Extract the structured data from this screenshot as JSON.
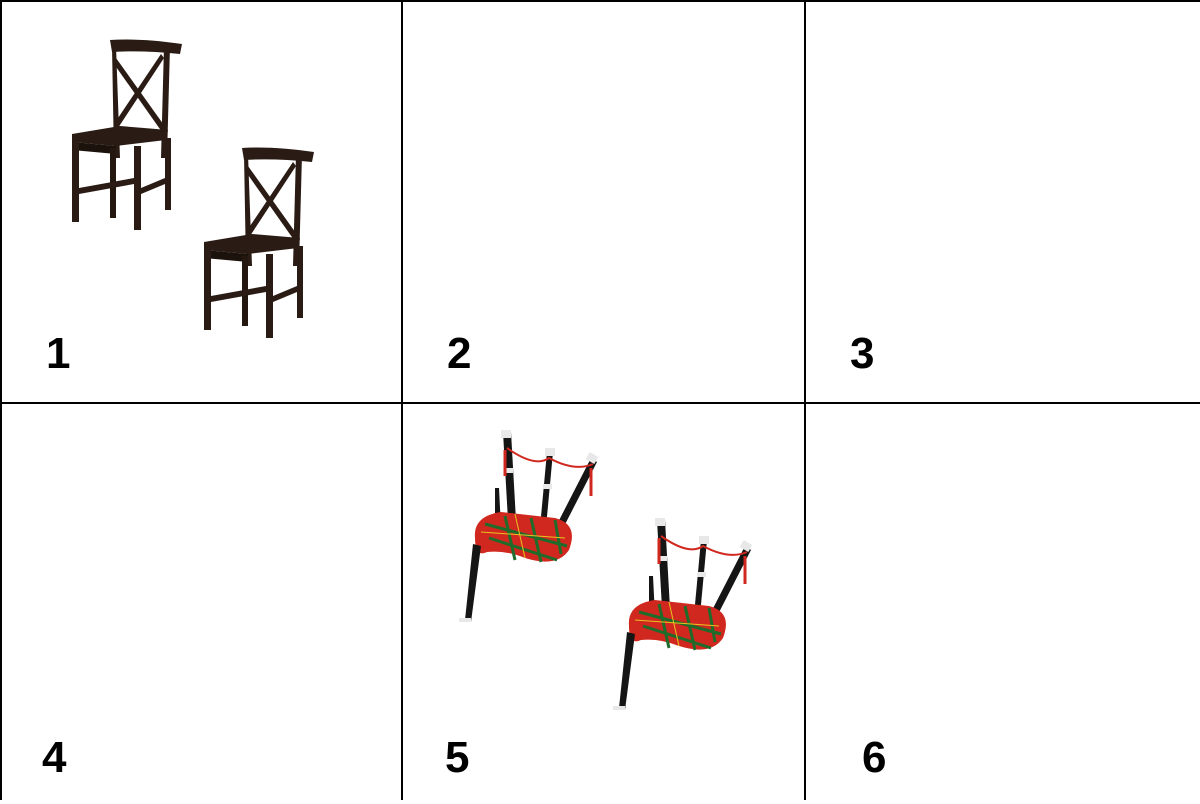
{
  "cells": [
    {
      "label": "1",
      "content": "two-chairs"
    },
    {
      "label": "2",
      "content": "empty"
    },
    {
      "label": "3",
      "content": "empty"
    },
    {
      "label": "4",
      "content": "empty"
    },
    {
      "label": "5",
      "content": "two-bagpipes"
    },
    {
      "label": "6",
      "content": "empty"
    }
  ],
  "colors": {
    "border": "#000000",
    "chair": "#2a1c14",
    "tartan_red": "#d0281e",
    "tartan_green": "#1f6b2a",
    "pipe": "#151515"
  }
}
